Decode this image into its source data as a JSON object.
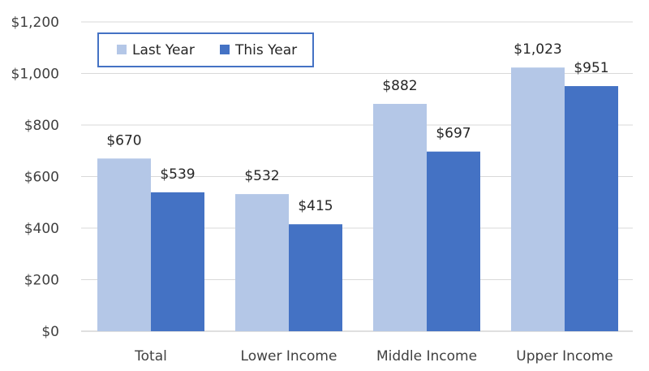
{
  "chart_data": {
    "type": "bar",
    "categories": [
      "Total",
      "Lower Income",
      "Middle Income",
      "Upper Income"
    ],
    "series": [
      {
        "name": "Last Year",
        "values": [
          670,
          532,
          882,
          1023
        ],
        "labels": [
          "$670",
          "$532",
          "$882",
          "$1,023"
        ],
        "color": "#b4c7e7"
      },
      {
        "name": "This Year",
        "values": [
          539,
          415,
          697,
          951
        ],
        "labels": [
          "$539",
          "$415",
          "$697",
          "$951"
        ],
        "color": "#4472c4"
      }
    ],
    "title": "",
    "xlabel": "",
    "ylabel": "",
    "ylim": [
      0,
      1200
    ],
    "yticks": [
      0,
      200,
      400,
      600,
      800,
      1000,
      1200
    ],
    "ytick_labels": [
      "$0",
      "$200",
      "$400",
      "$600",
      "$800",
      "$1,000",
      "$1,200"
    ],
    "grid": true,
    "legend_position": "top-left",
    "legend_border_color": "#4472c4"
  }
}
